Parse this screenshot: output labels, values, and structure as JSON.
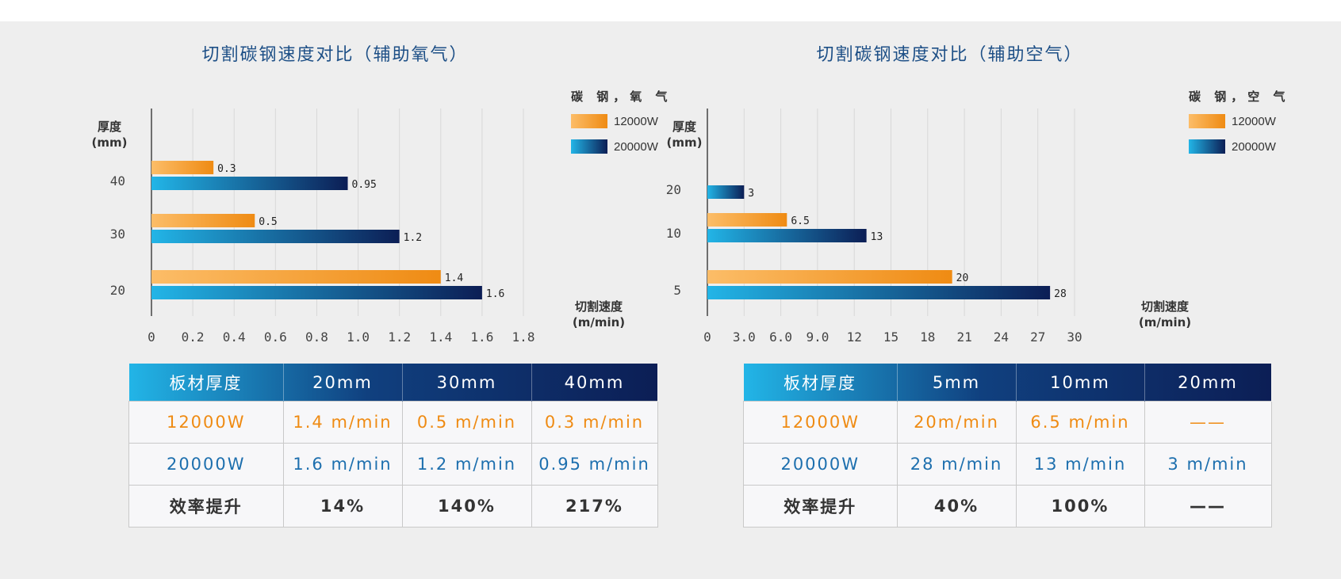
{
  "chart_data": [
    {
      "type": "bar",
      "orientation": "horizontal",
      "title": "切割碳钢速度对比（辅助氧气）",
      "ylabel": [
        "厚度",
        "(mm)"
      ],
      "xlabel": [
        "切割速度",
        "(m/min)"
      ],
      "legend_title": "碳 钢，氧 气",
      "legend_position": "top-right",
      "categories": [
        "40",
        "30",
        "20"
      ],
      "series": [
        {
          "name": "12000W",
          "values": [
            0.3,
            0.5,
            1.4
          ],
          "labels": [
            "0.3",
            "0.5",
            "1.4"
          ],
          "color": "orange"
        },
        {
          "name": "20000W",
          "values": [
            0.95,
            1.2,
            1.6
          ],
          "labels": [
            "0.95",
            "1.2",
            "1.6"
          ],
          "color": "blue"
        }
      ],
      "xticks": [
        "0",
        "0.2",
        "0.4",
        "0.6",
        "0.8",
        "1.0",
        "1.2",
        "1.4",
        "1.6",
        "1.8"
      ],
      "xlim": [
        0,
        1.8
      ],
      "grid": true
    },
    {
      "type": "bar",
      "orientation": "horizontal",
      "title": "切割碳钢速度对比（辅助空气）",
      "ylabel": [
        "厚度",
        "(mm)"
      ],
      "xlabel": [
        "切割速度",
        "(m/min)"
      ],
      "legend_title": "碳 钢，空 气",
      "legend_position": "top-right",
      "categories": [
        "20",
        "10",
        "5"
      ],
      "series": [
        {
          "name": "12000W",
          "values": [
            null,
            6.5,
            20
          ],
          "labels": [
            null,
            "6.5",
            "20"
          ],
          "color": "orange"
        },
        {
          "name": "20000W",
          "values": [
            3,
            13,
            28
          ],
          "labels": [
            "3",
            "13",
            "28"
          ],
          "color": "blue"
        }
      ],
      "xticks": [
        "0",
        "3.0",
        "6.0",
        "9.0",
        "12",
        "15",
        "18",
        "21",
        "24",
        "27",
        "30"
      ],
      "xlim": [
        0,
        30
      ],
      "grid": true
    }
  ],
  "colors": {
    "orange_start": "#fcbd68",
    "orange_end": "#ef8b13",
    "blue_start": "#22b5e7",
    "blue_end": "#0c1e55",
    "title": "#1d4f86",
    "value_orange": "#ef8b13",
    "value_blue": "#1d6fae"
  },
  "tables": {
    "oxygen": {
      "header": [
        "板材厚度",
        "20mm",
        "30mm",
        "40mm"
      ],
      "rows": [
        {
          "label": "12000W",
          "cells": [
            "1.4 m/min",
            "0.5 m/min",
            "0.3 m/min"
          ]
        },
        {
          "label": "20000W",
          "cells": [
            "1.6 m/min",
            "1.2 m/min",
            "0.95 m/min"
          ]
        },
        {
          "label": "效率提升",
          "cells": [
            "14%",
            "140%",
            "217%"
          ]
        }
      ]
    },
    "air": {
      "header": [
        "板材厚度",
        "5mm",
        "10mm",
        "20mm"
      ],
      "rows": [
        {
          "label": "12000W",
          "cells": [
            "20m/min",
            "6.5 m/min",
            "——"
          ]
        },
        {
          "label": "20000W",
          "cells": [
            "28 m/min",
            "13 m/min",
            "3 m/min"
          ]
        },
        {
          "label": "效率提升",
          "cells": [
            "40%",
            "100%",
            "——"
          ]
        }
      ]
    }
  }
}
